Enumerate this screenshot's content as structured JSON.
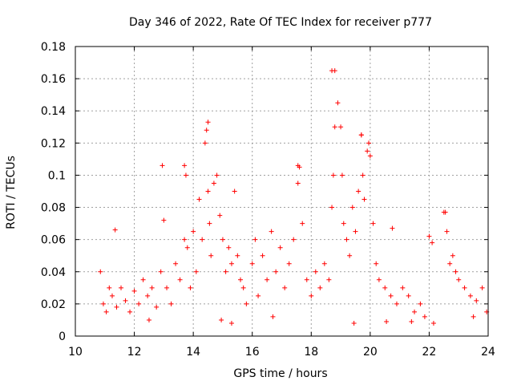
{
  "chart_data": {
    "type": "scatter",
    "title": "Day 346 of 2022, Rate Of TEC Index for receiver p777",
    "xlabel": "GPS time / hours",
    "ylabel": "ROTI / TECUs",
    "xlim": [
      10,
      24
    ],
    "ylim": [
      0,
      0.18
    ],
    "grid": true,
    "marker": "+",
    "x_ticks": [
      10,
      12,
      14,
      16,
      18,
      20,
      22,
      24
    ],
    "y_ticks": [
      0,
      0.02,
      0.04,
      0.06,
      0.08,
      0.1,
      0.12,
      0.14,
      0.16,
      0.18
    ],
    "x_tick_labels": [
      "10",
      "12",
      "14",
      "16",
      "18",
      "20",
      "22",
      "24"
    ],
    "y_tick_labels": [
      "0",
      "0.02",
      "0.04",
      "0.06",
      "0.08",
      "0.1",
      "0.12",
      "0.14",
      "0.16",
      "0.18"
    ],
    "series": [
      {
        "name": "ROTI",
        "color": "#ff0000",
        "x": [
          10.85,
          10.95,
          11.05,
          11.15,
          11.25,
          11.4,
          11.55,
          11.7,
          11.85,
          12.0,
          12.15,
          12.3,
          12.45,
          12.6,
          12.75,
          12.9,
          13.0,
          13.1,
          13.25,
          13.4,
          13.55,
          13.7,
          13.75,
          13.8,
          13.9,
          14.0,
          14.1,
          14.2,
          14.3,
          14.4,
          14.45,
          14.5,
          14.55,
          14.6,
          14.7,
          14.8,
          14.9,
          15.0,
          15.1,
          15.2,
          15.3,
          15.4,
          15.5,
          15.6,
          15.7,
          15.8,
          16.0,
          16.1,
          16.2,
          16.35,
          16.5,
          16.65,
          16.8,
          16.95,
          17.1,
          17.25,
          17.4,
          17.55,
          17.6,
          17.7,
          17.85,
          18.0,
          18.15,
          18.3,
          18.45,
          18.6,
          18.7,
          18.75,
          18.8,
          18.9,
          19.0,
          19.05,
          19.1,
          19.2,
          19.3,
          19.4,
          19.5,
          19.6,
          19.7,
          19.75,
          19.8,
          19.9,
          20.0,
          20.1,
          20.2,
          20.3,
          20.5,
          20.7,
          20.9,
          21.1,
          21.3,
          21.5,
          21.7,
          21.85,
          22.0,
          22.1,
          22.5,
          22.6,
          22.7,
          22.8,
          22.9,
          23.0,
          23.2,
          23.4,
          23.6,
          23.8,
          23.95,
          11.35,
          12.95,
          13.7,
          14.5,
          17.55,
          18.7,
          18.8,
          19.7,
          19.95,
          20.75,
          22.55,
          12.5,
          15.3,
          16.7,
          21.4,
          22.15,
          23.5,
          14.95,
          19.45,
          20.55
        ],
        "y": [
          0.04,
          0.02,
          0.015,
          0.03,
          0.025,
          0.018,
          0.03,
          0.022,
          0.015,
          0.028,
          0.02,
          0.035,
          0.025,
          0.03,
          0.018,
          0.04,
          0.072,
          0.03,
          0.02,
          0.045,
          0.035,
          0.06,
          0.1,
          0.055,
          0.03,
          0.065,
          0.04,
          0.085,
          0.06,
          0.12,
          0.128,
          0.09,
          0.07,
          0.05,
          0.095,
          0.1,
          0.075,
          0.06,
          0.04,
          0.055,
          0.045,
          0.09,
          0.05,
          0.035,
          0.03,
          0.02,
          0.045,
          0.06,
          0.025,
          0.05,
          0.035,
          0.065,
          0.04,
          0.055,
          0.03,
          0.045,
          0.06,
          0.095,
          0.105,
          0.07,
          0.035,
          0.025,
          0.04,
          0.03,
          0.045,
          0.035,
          0.08,
          0.1,
          0.165,
          0.145,
          0.13,
          0.1,
          0.07,
          0.06,
          0.05,
          0.08,
          0.065,
          0.09,
          0.125,
          0.1,
          0.085,
          0.115,
          0.112,
          0.07,
          0.045,
          0.035,
          0.03,
          0.025,
          0.02,
          0.03,
          0.025,
          0.015,
          0.02,
          0.012,
          0.062,
          0.058,
          0.077,
          0.065,
          0.045,
          0.05,
          0.04,
          0.035,
          0.03,
          0.025,
          0.022,
          0.03,
          0.015,
          0.066,
          0.106,
          0.106,
          0.133,
          0.106,
          0.165,
          0.13,
          0.125,
          0.12,
          0.067,
          0.077,
          0.01,
          0.008,
          0.012,
          0.009,
          0.008,
          0.012,
          0.01,
          0.008,
          0.009
        ]
      }
    ]
  }
}
